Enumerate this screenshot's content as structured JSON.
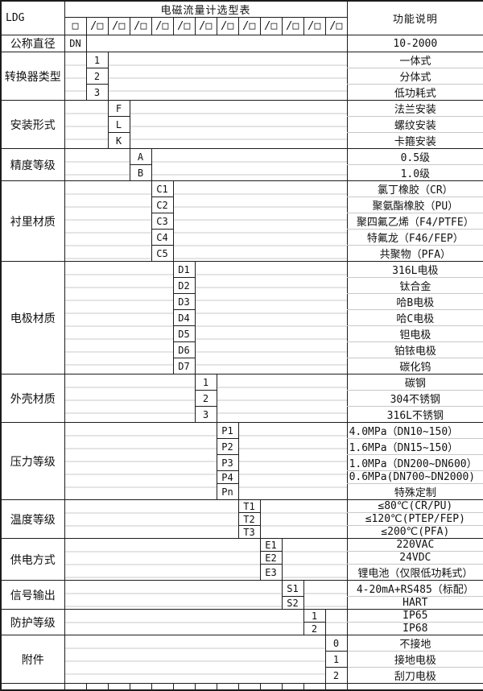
{
  "title": "电磁流量计选型表",
  "function_header": "功能说明",
  "model": {
    "prefix": "LDG",
    "first_slot": "□",
    "next_slot": "/□",
    "slot_count": 12
  },
  "colors": {
    "border_dark": "#1c1c1c",
    "border_light": "#c8c8c8",
    "text": "#111111",
    "background": "#ffffff"
  },
  "categories": [
    {
      "label": "公称直径",
      "level": 1,
      "options": [
        {
          "code": "DN",
          "desc": "10-2000"
        }
      ]
    },
    {
      "label": "转换器类型",
      "level": 2,
      "options": [
        {
          "code": "1",
          "desc": "一体式"
        },
        {
          "code": "2",
          "desc": "分体式"
        },
        {
          "code": "3",
          "desc": "低功耗式"
        }
      ]
    },
    {
      "label": "安装形式",
      "level": 3,
      "options": [
        {
          "code": "F",
          "desc": "法兰安装"
        },
        {
          "code": "L",
          "desc": "螺纹安装"
        },
        {
          "code": "K",
          "desc": "卡箍安装"
        }
      ]
    },
    {
      "label": "精度等级",
      "level": 4,
      "options": [
        {
          "code": "A",
          "desc": "0.5级"
        },
        {
          "code": "B",
          "desc": "1.0级"
        }
      ]
    },
    {
      "label": "衬里材质",
      "level": 5,
      "options": [
        {
          "code": "C1",
          "desc": "氯丁橡胶（CR）"
        },
        {
          "code": "C2",
          "desc": "聚氨酯橡胶（PU）"
        },
        {
          "code": "C3",
          "desc": "聚四氟乙烯（F4/PTFE）"
        },
        {
          "code": "C4",
          "desc": "特氟龙（F46/FEP）"
        },
        {
          "code": "C5",
          "desc": "共聚物（PFA）"
        }
      ]
    },
    {
      "label": "电极材质",
      "level": 6,
      "options": [
        {
          "code": "D1",
          "desc": "316L电极"
        },
        {
          "code": "D2",
          "desc": "钛合金"
        },
        {
          "code": "D3",
          "desc": "哈B电极"
        },
        {
          "code": "D4",
          "desc": "哈C电极"
        },
        {
          "code": "D5",
          "desc": "钽电极"
        },
        {
          "code": "D6",
          "desc": "铂铱电极"
        },
        {
          "code": "D7",
          "desc": "碳化钨"
        }
      ]
    },
    {
      "label": "外壳材质",
      "level": 7,
      "options": [
        {
          "code": "1",
          "desc": "碳钢"
        },
        {
          "code": "2",
          "desc": "304不锈钢"
        },
        {
          "code": "3",
          "desc": "316L不锈钢"
        }
      ]
    },
    {
      "label": "压力等级",
      "level": 8,
      "options": [
        {
          "code": "P1",
          "desc": "4.0MPa（DN10~150）",
          "align": "left"
        },
        {
          "code": "P2",
          "desc": "1.6MPa（DN15~150）",
          "align": "left"
        },
        {
          "code": "P3",
          "desc": "1.0MPa（DN200~DN600）",
          "align": "left"
        },
        {
          "code": "P4",
          "desc": "0.6MPa(DN700~DN2000)",
          "align": "left"
        },
        {
          "code": "Pn",
          "desc": "特殊定制"
        }
      ]
    },
    {
      "label": "温度等级",
      "level": 9,
      "options": [
        {
          "code": "T1",
          "desc": "≤80℃(CR/PU)"
        },
        {
          "code": "T2",
          "desc": "≤120℃(PTEP/FEP)"
        },
        {
          "code": "T3",
          "desc": "≤200℃(PFA)"
        }
      ]
    },
    {
      "label": "供电方式",
      "level": 10,
      "options": [
        {
          "code": "E1",
          "desc": "220VAC"
        },
        {
          "code": "E2",
          "desc": "24VDC"
        },
        {
          "code": "E3",
          "desc": "锂电池（仅限低功耗式）"
        }
      ]
    },
    {
      "label": "信号输出",
      "level": 11,
      "options": [
        {
          "code": "S1",
          "desc": "4-20mA+RS485（标配）"
        },
        {
          "code": "S2",
          "desc": "HART"
        }
      ]
    },
    {
      "label": "防护等级",
      "level": 12,
      "options": [
        {
          "code": "1",
          "desc": "IP65"
        },
        {
          "code": "2",
          "desc": "IP68"
        }
      ]
    },
    {
      "label": "附件",
      "level": 13,
      "options": [
        {
          "code": "0",
          "desc": "不接地"
        },
        {
          "code": "1",
          "desc": "接地电极"
        },
        {
          "code": "2",
          "desc": "刮刀电极"
        }
      ]
    }
  ]
}
